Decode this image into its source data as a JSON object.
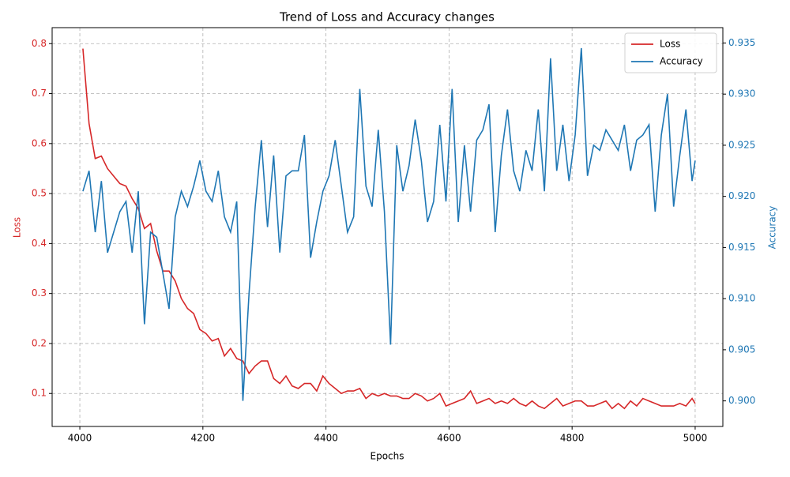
{
  "chart_data": {
    "type": "line",
    "title": "Trend of Loss and Accuracy changes",
    "xlabel": "Epochs",
    "ylabel": "Loss",
    "y2label": "Accuracy",
    "x": [
      4005,
      4015,
      4025,
      4035,
      4045,
      4055,
      4065,
      4075,
      4085,
      4095,
      4105,
      4115,
      4125,
      4135,
      4145,
      4155,
      4165,
      4175,
      4185,
      4195,
      4205,
      4215,
      4225,
      4235,
      4245,
      4255,
      4265,
      4275,
      4285,
      4295,
      4305,
      4315,
      4325,
      4335,
      4345,
      4355,
      4365,
      4375,
      4385,
      4395,
      4405,
      4415,
      4425,
      4435,
      4445,
      4455,
      4465,
      4475,
      4485,
      4495,
      4505,
      4515,
      4525,
      4535,
      4545,
      4555,
      4565,
      4575,
      4585,
      4595,
      4605,
      4615,
      4625,
      4635,
      4645,
      4655,
      4665,
      4675,
      4685,
      4695,
      4705,
      4715,
      4725,
      4735,
      4745,
      4755,
      4765,
      4775,
      4785,
      4795,
      4805,
      4815,
      4825,
      4835,
      4845,
      4855,
      4865,
      4875,
      4885,
      4895,
      4905,
      4915,
      4925,
      4935,
      4945,
      4955,
      4965,
      4975,
      4985,
      4995,
      5000
    ],
    "series": [
      {
        "name": "Loss",
        "color": "#d62728",
        "axis": "y",
        "values": [
          0.79,
          0.64,
          0.57,
          0.575,
          0.55,
          0.535,
          0.52,
          0.515,
          0.49,
          0.47,
          0.43,
          0.44,
          0.385,
          0.345,
          0.345,
          0.325,
          0.29,
          0.27,
          0.26,
          0.228,
          0.22,
          0.205,
          0.21,
          0.175,
          0.19,
          0.17,
          0.165,
          0.14,
          0.155,
          0.165,
          0.165,
          0.13,
          0.12,
          0.135,
          0.115,
          0.11,
          0.12,
          0.12,
          0.105,
          0.135,
          0.12,
          0.11,
          0.1,
          0.105,
          0.105,
          0.11,
          0.09,
          0.1,
          0.095,
          0.1,
          0.095,
          0.095,
          0.09,
          0.09,
          0.1,
          0.095,
          0.085,
          0.09,
          0.1,
          0.075,
          0.08,
          0.085,
          0.09,
          0.105,
          0.08,
          0.085,
          0.09,
          0.08,
          0.085,
          0.08,
          0.09,
          0.08,
          0.075,
          0.085,
          0.075,
          0.07,
          0.08,
          0.09,
          0.075,
          0.08,
          0.085,
          0.085,
          0.075,
          0.075,
          0.08,
          0.085,
          0.07,
          0.08,
          0.07,
          0.085,
          0.075,
          0.09,
          0.085,
          0.08,
          0.075,
          0.075,
          0.075,
          0.08,
          0.075,
          0.09,
          0.08
        ]
      },
      {
        "name": "Accuracy",
        "color": "#1f77b4",
        "axis": "y2",
        "values": [
          0.9205,
          0.9225,
          0.9165,
          0.9215,
          0.9145,
          0.9165,
          0.9185,
          0.9195,
          0.9145,
          0.9205,
          0.9075,
          0.9165,
          0.916,
          0.9125,
          0.909,
          0.918,
          0.9205,
          0.919,
          0.921,
          0.9235,
          0.9205,
          0.9195,
          0.9225,
          0.918,
          0.9165,
          0.9195,
          0.9,
          0.9105,
          0.919,
          0.9255,
          0.917,
          0.924,
          0.9145,
          0.922,
          0.9225,
          0.9225,
          0.926,
          0.914,
          0.9175,
          0.9205,
          0.922,
          0.9255,
          0.921,
          0.9165,
          0.918,
          0.9305,
          0.921,
          0.919,
          0.9265,
          0.9185,
          0.9055,
          0.925,
          0.9205,
          0.923,
          0.9275,
          0.9235,
          0.9175,
          0.9195,
          0.927,
          0.9195,
          0.9305,
          0.9175,
          0.925,
          0.9185,
          0.9255,
          0.9265,
          0.929,
          0.9165,
          0.924,
          0.9285,
          0.9225,
          0.9205,
          0.9245,
          0.9225,
          0.9285,
          0.9205,
          0.9335,
          0.9225,
          0.927,
          0.9215,
          0.926,
          0.9345,
          0.922,
          0.925,
          0.9245,
          0.9265,
          0.9255,
          0.9245,
          0.927,
          0.9225,
          0.9255,
          0.926,
          0.927,
          0.9185,
          0.926,
          0.93,
          0.919,
          0.924,
          0.9285,
          0.9215,
          0.9235
        ]
      }
    ],
    "xlim": [
      3955,
      5045
    ],
    "xticks": [
      4000,
      4200,
      4400,
      4600,
      4800,
      5000
    ],
    "ylim": [
      0.034,
      0.832
    ],
    "yticks": [
      0.1,
      0.2,
      0.3,
      0.4,
      0.5,
      0.6,
      0.7,
      0.8
    ],
    "y2lim": [
      0.8975,
      0.9365
    ],
    "y2ticks": [
      {
        "value": 0.9,
        "label": "0.900"
      },
      {
        "value": 0.905,
        "label": "0.905"
      },
      {
        "value": 0.91,
        "label": "0.910"
      },
      {
        "value": 0.915,
        "label": "0.915"
      },
      {
        "value": 0.92,
        "label": "0.920"
      },
      {
        "value": 0.925,
        "label": "0.925"
      },
      {
        "value": 0.93,
        "label": "0.930"
      },
      {
        "value": 0.935,
        "label": "0.935"
      }
    ],
    "grid": true,
    "legend": "upper right"
  }
}
